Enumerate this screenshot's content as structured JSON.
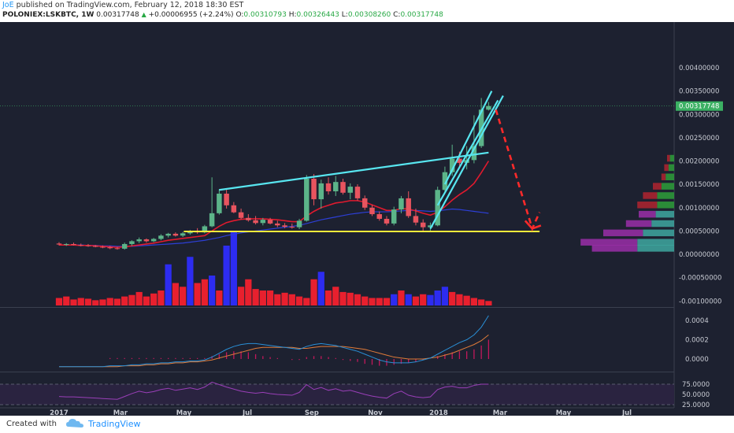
{
  "header": {
    "author": "JoE",
    "published_text": "published on TradingView.com, February 12, 2018 18:30 EST",
    "symbol": "POLONIEX:LSKBTC, 1W",
    "last": "0.00317748",
    "change": "+0.00006955 (+2.24%)",
    "open_label": "O:",
    "open": "0.00310793",
    "high_label": "H:",
    "high": "0.00326443",
    "low_label": "L:",
    "low": "0.00308260",
    "close_label": "C:",
    "close": "0.00317748"
  },
  "footer": {
    "created_with": "Created with",
    "brand": "TradingView"
  },
  "colors": {
    "bull": "#5cb489",
    "bear": "#e8545f",
    "trend": "#58e6f0",
    "support": "#ffeb3b",
    "arrow": "#ff2a2a",
    "price_tag": "#3bb063"
  },
  "chart_data": {
    "type": "candlestick",
    "timeframe": "1W",
    "price_axis": {
      "ylim": [
        -0.001,
        0.0045
      ],
      "ticks": [
        0.004,
        0.0035,
        0.003,
        0.0025,
        0.002,
        0.0015,
        0.001,
        0.0005,
        0.0,
        -0.0005,
        -0.001
      ],
      "tick_labels": [
        "0.00400000",
        "0.00350000",
        "0.00300000",
        "0.00250000",
        "0.00200000",
        "0.00150000",
        "0.00100000",
        "0.00050000",
        "0.00000000",
        "-0.00050000",
        "-0.00100000"
      ],
      "last_price_label": "0.00317748"
    },
    "x_axis": {
      "labels": [
        "2017",
        "Mar",
        "May",
        "Jul",
        "Sep",
        "Nov",
        "2018",
        "Mar",
        "May",
        "Jul"
      ],
      "label_dates": [
        "2017-01-01",
        "2017-03-01",
        "2017-05-01",
        "2017-07-01",
        "2017-09-01",
        "2017-11-01",
        "2018-01-01",
        "2018-03-01",
        "2018-05-01",
        "2018-07-01"
      ]
    },
    "candles": [
      {
        "d": "2017-01-01",
        "o": 0.00023,
        "h": 0.00026,
        "l": 0.00019,
        "c": 0.00021
      },
      {
        "d": "2017-01-08",
        "o": 0.00021,
        "h": 0.00024,
        "l": 0.00018,
        "c": 0.00022
      },
      {
        "d": "2017-01-15",
        "o": 0.00022,
        "h": 0.00025,
        "l": 0.00019,
        "c": 0.0002
      },
      {
        "d": "2017-01-22",
        "o": 0.0002,
        "h": 0.00023,
        "l": 0.00017,
        "c": 0.00019
      },
      {
        "d": "2017-01-29",
        "o": 0.00019,
        "h": 0.00022,
        "l": 0.00016,
        "c": 0.00018
      },
      {
        "d": "2017-02-05",
        "o": 0.00018,
        "h": 0.0002,
        "l": 0.00015,
        "c": 0.00016
      },
      {
        "d": "2017-02-12",
        "o": 0.00016,
        "h": 0.00019,
        "l": 0.00013,
        "c": 0.00015
      },
      {
        "d": "2017-02-19",
        "o": 0.00015,
        "h": 0.00018,
        "l": 0.00011,
        "c": 0.00013
      },
      {
        "d": "2017-02-26",
        "o": 0.00013,
        "h": 0.00016,
        "l": 0.0001,
        "c": 0.00012
      },
      {
        "d": "2017-03-05",
        "o": 0.00012,
        "h": 0.00025,
        "l": 0.0001,
        "c": 0.00022
      },
      {
        "d": "2017-03-12",
        "o": 0.00022,
        "h": 0.0003,
        "l": 0.00018,
        "c": 0.00028
      },
      {
        "d": "2017-03-19",
        "o": 0.00028,
        "h": 0.00036,
        "l": 0.00024,
        "c": 0.00032
      },
      {
        "d": "2017-03-26",
        "o": 0.00032,
        "h": 0.00034,
        "l": 0.00025,
        "c": 0.00028
      },
      {
        "d": "2017-04-02",
        "o": 0.00028,
        "h": 0.00035,
        "l": 0.00026,
        "c": 0.00033
      },
      {
        "d": "2017-04-09",
        "o": 0.00033,
        "h": 0.00043,
        "l": 0.0003,
        "c": 0.0004
      },
      {
        "d": "2017-04-16",
        "o": 0.0004,
        "h": 0.00046,
        "l": 0.00036,
        "c": 0.00044
      },
      {
        "d": "2017-04-23",
        "o": 0.00044,
        "h": 0.00047,
        "l": 0.00038,
        "c": 0.0004
      },
      {
        "d": "2017-04-30",
        "o": 0.0004,
        "h": 0.00048,
        "l": 0.00037,
        "c": 0.00045
      },
      {
        "d": "2017-05-07",
        "o": 0.00045,
        "h": 0.00052,
        "l": 0.00042,
        "c": 0.00049
      },
      {
        "d": "2017-05-14",
        "o": 0.00049,
        "h": 0.00056,
        "l": 0.00044,
        "c": 0.00047
      },
      {
        "d": "2017-05-21",
        "o": 0.00047,
        "h": 0.00063,
        "l": 0.00045,
        "c": 0.0006
      },
      {
        "d": "2017-05-28",
        "o": 0.0006,
        "h": 0.00165,
        "l": 0.00058,
        "c": 0.00088
      },
      {
        "d": "2017-06-04",
        "o": 0.00088,
        "h": 0.0014,
        "l": 0.00085,
        "c": 0.0013
      },
      {
        "d": "2017-06-11",
        "o": 0.0013,
        "h": 0.00138,
        "l": 0.00098,
        "c": 0.00105
      },
      {
        "d": "2017-06-18",
        "o": 0.00105,
        "h": 0.00112,
        "l": 0.00088,
        "c": 0.0009
      },
      {
        "d": "2017-06-25",
        "o": 0.0009,
        "h": 0.00098,
        "l": 0.00075,
        "c": 0.00078
      },
      {
        "d": "2017-07-02",
        "o": 0.00078,
        "h": 0.00086,
        "l": 0.0007,
        "c": 0.00073
      },
      {
        "d": "2017-07-09",
        "o": 0.00073,
        "h": 0.00082,
        "l": 0.00064,
        "c": 0.00067
      },
      {
        "d": "2017-07-16",
        "o": 0.00067,
        "h": 0.00078,
        "l": 0.00062,
        "c": 0.00074
      },
      {
        "d": "2017-07-23",
        "o": 0.00074,
        "h": 0.00078,
        "l": 0.00064,
        "c": 0.00066
      },
      {
        "d": "2017-07-30",
        "o": 0.00066,
        "h": 0.00072,
        "l": 0.00058,
        "c": 0.00062
      },
      {
        "d": "2017-08-06",
        "o": 0.00062,
        "h": 0.00067,
        "l": 0.00056,
        "c": 0.00059
      },
      {
        "d": "2017-08-13",
        "o": 0.00059,
        "h": 0.00066,
        "l": 0.00055,
        "c": 0.00058
      },
      {
        "d": "2017-08-20",
        "o": 0.00058,
        "h": 0.00076,
        "l": 0.00054,
        "c": 0.00072
      },
      {
        "d": "2017-08-27",
        "o": 0.00072,
        "h": 0.0017,
        "l": 0.0007,
        "c": 0.00162
      },
      {
        "d": "2017-09-03",
        "o": 0.00162,
        "h": 0.00172,
        "l": 0.00105,
        "c": 0.00118
      },
      {
        "d": "2017-09-10",
        "o": 0.00118,
        "h": 0.0016,
        "l": 0.00098,
        "c": 0.00152
      },
      {
        "d": "2017-09-17",
        "o": 0.00152,
        "h": 0.00165,
        "l": 0.00128,
        "c": 0.00135
      },
      {
        "d": "2017-09-24",
        "o": 0.00135,
        "h": 0.00168,
        "l": 0.00125,
        "c": 0.00155
      },
      {
        "d": "2017-10-01",
        "o": 0.00155,
        "h": 0.00162,
        "l": 0.00128,
        "c": 0.00132
      },
      {
        "d": "2017-10-08",
        "o": 0.00132,
        "h": 0.00152,
        "l": 0.00118,
        "c": 0.00145
      },
      {
        "d": "2017-10-15",
        "o": 0.00145,
        "h": 0.0015,
        "l": 0.00115,
        "c": 0.0012
      },
      {
        "d": "2017-10-22",
        "o": 0.0012,
        "h": 0.00126,
        "l": 0.00095,
        "c": 0.001
      },
      {
        "d": "2017-10-29",
        "o": 0.001,
        "h": 0.00106,
        "l": 0.00082,
        "c": 0.00086
      },
      {
        "d": "2017-11-05",
        "o": 0.00086,
        "h": 0.00092,
        "l": 0.00072,
        "c": 0.00076
      },
      {
        "d": "2017-11-12",
        "o": 0.00076,
        "h": 0.00082,
        "l": 0.00062,
        "c": 0.00066
      },
      {
        "d": "2017-11-19",
        "o": 0.00066,
        "h": 0.00102,
        "l": 0.00062,
        "c": 0.00096
      },
      {
        "d": "2017-11-26",
        "o": 0.00096,
        "h": 0.00125,
        "l": 0.00088,
        "c": 0.0012
      },
      {
        "d": "2017-12-03",
        "o": 0.0012,
        "h": 0.00135,
        "l": 0.00078,
        "c": 0.00082
      },
      {
        "d": "2017-12-10",
        "o": 0.00082,
        "h": 0.00098,
        "l": 0.00062,
        "c": 0.00068
      },
      {
        "d": "2017-12-17",
        "o": 0.00068,
        "h": 0.00075,
        "l": 0.0005,
        "c": 0.00058
      },
      {
        "d": "2017-12-24",
        "o": 0.00058,
        "h": 0.00068,
        "l": 0.00048,
        "c": 0.00062
      },
      {
        "d": "2017-12-31",
        "o": 0.00062,
        "h": 0.00145,
        "l": 0.0006,
        "c": 0.00138
      },
      {
        "d": "2018-01-07",
        "o": 0.00138,
        "h": 0.00188,
        "l": 0.00132,
        "c": 0.00176
      },
      {
        "d": "2018-01-14",
        "o": 0.00176,
        "h": 0.00235,
        "l": 0.00168,
        "c": 0.00205
      },
      {
        "d": "2018-01-21",
        "o": 0.00205,
        "h": 0.0022,
        "l": 0.00186,
        "c": 0.00196
      },
      {
        "d": "2018-01-28",
        "o": 0.00196,
        "h": 0.00232,
        "l": 0.00182,
        "c": 0.00202
      },
      {
        "d": "2018-02-04",
        "o": 0.00202,
        "h": 0.00298,
        "l": 0.00195,
        "c": 0.00232
      },
      {
        "d": "2018-02-11",
        "o": 0.00232,
        "h": 0.00335,
        "l": 0.00228,
        "c": 0.0031
      },
      {
        "d": "2018-02-18",
        "o": 0.0031,
        "h": 0.00326443,
        "l": 0.0030826,
        "c": 0.00317748
      }
    ],
    "ema_red": [
      0.0002,
      0.0002,
      0.0002,
      0.00019,
      0.00019,
      0.00018,
      0.00017,
      0.00016,
      0.00015,
      0.00016,
      0.00018,
      0.0002,
      0.00022,
      0.00024,
      0.00027,
      0.0003,
      0.00032,
      0.00034,
      0.00036,
      0.00038,
      0.0004,
      0.0005,
      0.0006,
      0.00068,
      0.00072,
      0.00075,
      0.00076,
      0.00076,
      0.00076,
      0.00075,
      0.00074,
      0.00072,
      0.0007,
      0.0007,
      0.00082,
      0.00092,
      0.001,
      0.00105,
      0.0011,
      0.00112,
      0.00115,
      0.00115,
      0.00112,
      0.00106,
      0.001,
      0.00094,
      0.00094,
      0.00098,
      0.00097,
      0.00093,
      0.00088,
      0.00084,
      0.0009,
      0.00102,
      0.00116,
      0.00128,
      0.00138,
      0.00152,
      0.00175,
      0.002
    ],
    "ma_blue": [
      0.0002,
      0.0002,
      0.0002,
      0.0002,
      0.00019,
      0.00019,
      0.00018,
      0.00018,
      0.00017,
      0.00017,
      0.00017,
      0.00018,
      0.00019,
      0.0002,
      0.00021,
      0.00022,
      0.00023,
      0.00024,
      0.00026,
      0.00028,
      0.0003,
      0.00033,
      0.00036,
      0.0004,
      0.00043,
      0.00046,
      0.00048,
      0.0005,
      0.00052,
      0.00054,
      0.00056,
      0.00058,
      0.0006,
      0.00062,
      0.00066,
      0.0007,
      0.00074,
      0.00077,
      0.0008,
      0.00083,
      0.00086,
      0.00088,
      0.0009,
      0.00091,
      0.00091,
      0.00091,
      0.00092,
      0.00093,
      0.00094,
      0.00094,
      0.00093,
      0.00092,
      0.00093,
      0.00095,
      0.00097,
      0.00096,
      0.00094,
      0.00092,
      0.0009,
      0.00088
    ],
    "volume": [
      0.1,
      0.12,
      0.08,
      0.1,
      0.09,
      0.07,
      0.08,
      0.1,
      0.09,
      0.12,
      0.14,
      0.18,
      0.12,
      0.16,
      0.2,
      0.55,
      0.3,
      0.25,
      0.65,
      0.3,
      0.35,
      0.4,
      0.2,
      0.8,
      1.0,
      0.25,
      0.35,
      0.22,
      0.2,
      0.2,
      0.15,
      0.17,
      0.15,
      0.12,
      0.1,
      0.35,
      0.45,
      0.2,
      0.25,
      0.18,
      0.17,
      0.15,
      0.12,
      0.1,
      0.1,
      0.1,
      0.15,
      0.2,
      0.15,
      0.12,
      0.15,
      0.14,
      0.2,
      0.25,
      0.18,
      0.15,
      0.13,
      0.1,
      0.08,
      0.06
    ],
    "volume_colors": [
      "red",
      "red",
      "red",
      "red",
      "red",
      "red",
      "red",
      "red",
      "red",
      "red",
      "red",
      "red",
      "red",
      "red",
      "red",
      "blue",
      "red",
      "red",
      "blue",
      "red",
      "red",
      "blue",
      "red",
      "blue",
      "blue",
      "red",
      "red",
      "red",
      "red",
      "red",
      "red",
      "red",
      "red",
      "red",
      "red",
      "red",
      "blue",
      "red",
      "red",
      "red",
      "red",
      "red",
      "red",
      "red",
      "red",
      "red",
      "blue",
      "red",
      "blue",
      "red",
      "red",
      "blue",
      "blue",
      "blue",
      "red",
      "red",
      "red",
      "red",
      "red",
      "red"
    ],
    "macd": {
      "ylim": [
        -0.0001,
        0.0005
      ],
      "ticks": [
        0.0004,
        0.0002,
        0.0
      ],
      "tick_labels": [
        "0.0004",
        "0.0002",
        "0.0000"
      ],
      "macd_line": [
        -8e-05,
        -8e-05,
        -8e-05,
        -8e-05,
        -8e-05,
        -8e-05,
        -8e-05,
        -7e-05,
        -7e-05,
        -7e-05,
        -6e-05,
        -6e-05,
        -5e-05,
        -5e-05,
        -4e-05,
        -4e-05,
        -3e-05,
        -3e-05,
        -2e-05,
        -2e-05,
        -1e-05,
        2e-05,
        6e-05,
        0.0001,
        0.00013,
        0.00015,
        0.00016,
        0.00016,
        0.00015,
        0.00014,
        0.00013,
        0.00012,
        0.00011,
        0.0001,
        0.00013,
        0.00015,
        0.00016,
        0.00015,
        0.00014,
        0.00012,
        0.0001,
        8e-05,
        5e-05,
        2e-05,
        -1e-05,
        -3e-05,
        -4e-05,
        -4e-05,
        -4e-05,
        -3e-05,
        -1e-05,
        1e-05,
        5e-05,
        9e-05,
        0.00013,
        0.00017,
        0.0002,
        0.00025,
        0.00033,
        0.00045
      ],
      "signal_line": [
        -8e-05,
        -8e-05,
        -8e-05,
        -8e-05,
        -8e-05,
        -8e-05,
        -8e-05,
        -8e-05,
        -8e-05,
        -7e-05,
        -7e-05,
        -7e-05,
        -6e-05,
        -6e-05,
        -5e-05,
        -5e-05,
        -4e-05,
        -4e-05,
        -3e-05,
        -3e-05,
        -2e-05,
        -1e-05,
        1e-05,
        3e-05,
        5e-05,
        7e-05,
        9e-05,
        0.00011,
        0.00012,
        0.00012,
        0.00012,
        0.00012,
        0.00012,
        0.00011,
        0.00011,
        0.00012,
        0.00013,
        0.00013,
        0.00013,
        0.00013,
        0.00012,
        0.00011,
        0.0001,
        8e-05,
        6e-05,
        4e-05,
        2e-05,
        1e-05,
        0.0,
        0.0,
        0.0,
        1e-05,
        2e-05,
        4e-05,
        6e-05,
        9e-05,
        0.00012,
        0.00015,
        0.00019,
        0.00025
      ],
      "histogram": [
        0.0,
        0.0,
        0.0,
        0.0,
        0.0,
        0.0,
        0.0,
        1e-05,
        1e-05,
        1e-05,
        1e-05,
        1e-05,
        1e-05,
        1e-05,
        1e-05,
        1e-05,
        1e-05,
        1e-05,
        1e-05,
        1e-05,
        1e-05,
        3e-05,
        5e-05,
        7e-05,
        8e-05,
        8e-05,
        7e-05,
        5e-05,
        3e-05,
        2e-05,
        1e-05,
        0.0,
        -1e-05,
        -1e-05,
        2e-05,
        3e-05,
        3e-05,
        2e-05,
        1e-05,
        -1e-05,
        -2e-05,
        -3e-05,
        -5e-05,
        -6e-05,
        -7e-05,
        -7e-05,
        -6e-05,
        -5e-05,
        -4e-05,
        -3e-05,
        -1e-05,
        0.0,
        3e-05,
        5e-05,
        7e-05,
        8e-05,
        8e-05,
        0.0001,
        0.00014,
        0.0002
      ]
    },
    "rsi": {
      "ylim": [
        20,
        80
      ],
      "ticks": [
        75,
        50,
        25
      ],
      "tick_labels": [
        "75.0000",
        "50.0000",
        "25.0000"
      ],
      "values": [
        45,
        44,
        44,
        43,
        42,
        41,
        40,
        39,
        38,
        45,
        52,
        58,
        54,
        57,
        62,
        65,
        60,
        63,
        66,
        62,
        68,
        80,
        74,
        68,
        63,
        58,
        55,
        53,
        55,
        52,
        50,
        49,
        48,
        55,
        74,
        62,
        67,
        60,
        64,
        58,
        60,
        55,
        50,
        46,
        43,
        41,
        52,
        58,
        48,
        44,
        42,
        44,
        62,
        68,
        70,
        66,
        66,
        72,
        75,
        75
      ]
    },
    "drawings": {
      "trendlines": [
        {
          "from": [
            "2017-06-04",
            0.00138
          ],
          "to": [
            "2018-02-18",
            0.00218
          ]
        },
        {
          "from": [
            "2017-12-31",
            0.00105
          ],
          "to": [
            "2018-02-27",
            0.0033
          ]
        },
        {
          "from": [
            "2017-12-24",
            0.00055
          ],
          "to": [
            "2018-03-04",
            0.0034
          ]
        },
        {
          "from": [
            "2018-01-07",
            0.0015
          ],
          "to": [
            "2018-02-21",
            0.0035
          ]
        }
      ],
      "support_line": {
        "from": [
          "2017-05-01",
          0.00049
        ],
        "to": [
          "2018-04-08",
          0.00049
        ]
      },
      "projection": {
        "from": [
          "2018-02-25",
          0.0031
        ],
        "to": [
          "2018-04-01",
          0.00055
        ],
        "to2": [
          "2018-04-08",
          0.0009
        ]
      }
    },
    "volume_profile": [
      {
        "price": 0.00205,
        "up": 0.3,
        "down": 0.2
      },
      {
        "price": 0.00185,
        "up": 0.4,
        "down": 0.3
      },
      {
        "price": 0.00165,
        "up": 0.6,
        "down": 0.3
      },
      {
        "price": 0.00145,
        "up": 0.9,
        "down": 0.6
      },
      {
        "price": 0.00125,
        "up": 1.2,
        "down": 1.0
      },
      {
        "price": 0.00105,
        "up": 1.2,
        "down": 1.4
      },
      {
        "price": 0.00085,
        "up": 1.3,
        "down": 1.2
      },
      {
        "price": 0.00065,
        "up": 1.6,
        "down": 1.8
      },
      {
        "price": 0.00045,
        "up": 2.2,
        "down": 2.8
      },
      {
        "price": 0.00025,
        "up": 2.6,
        "down": 4.0
      },
      {
        "price": 0.00012,
        "up": 2.6,
        "down": 3.2
      }
    ]
  }
}
